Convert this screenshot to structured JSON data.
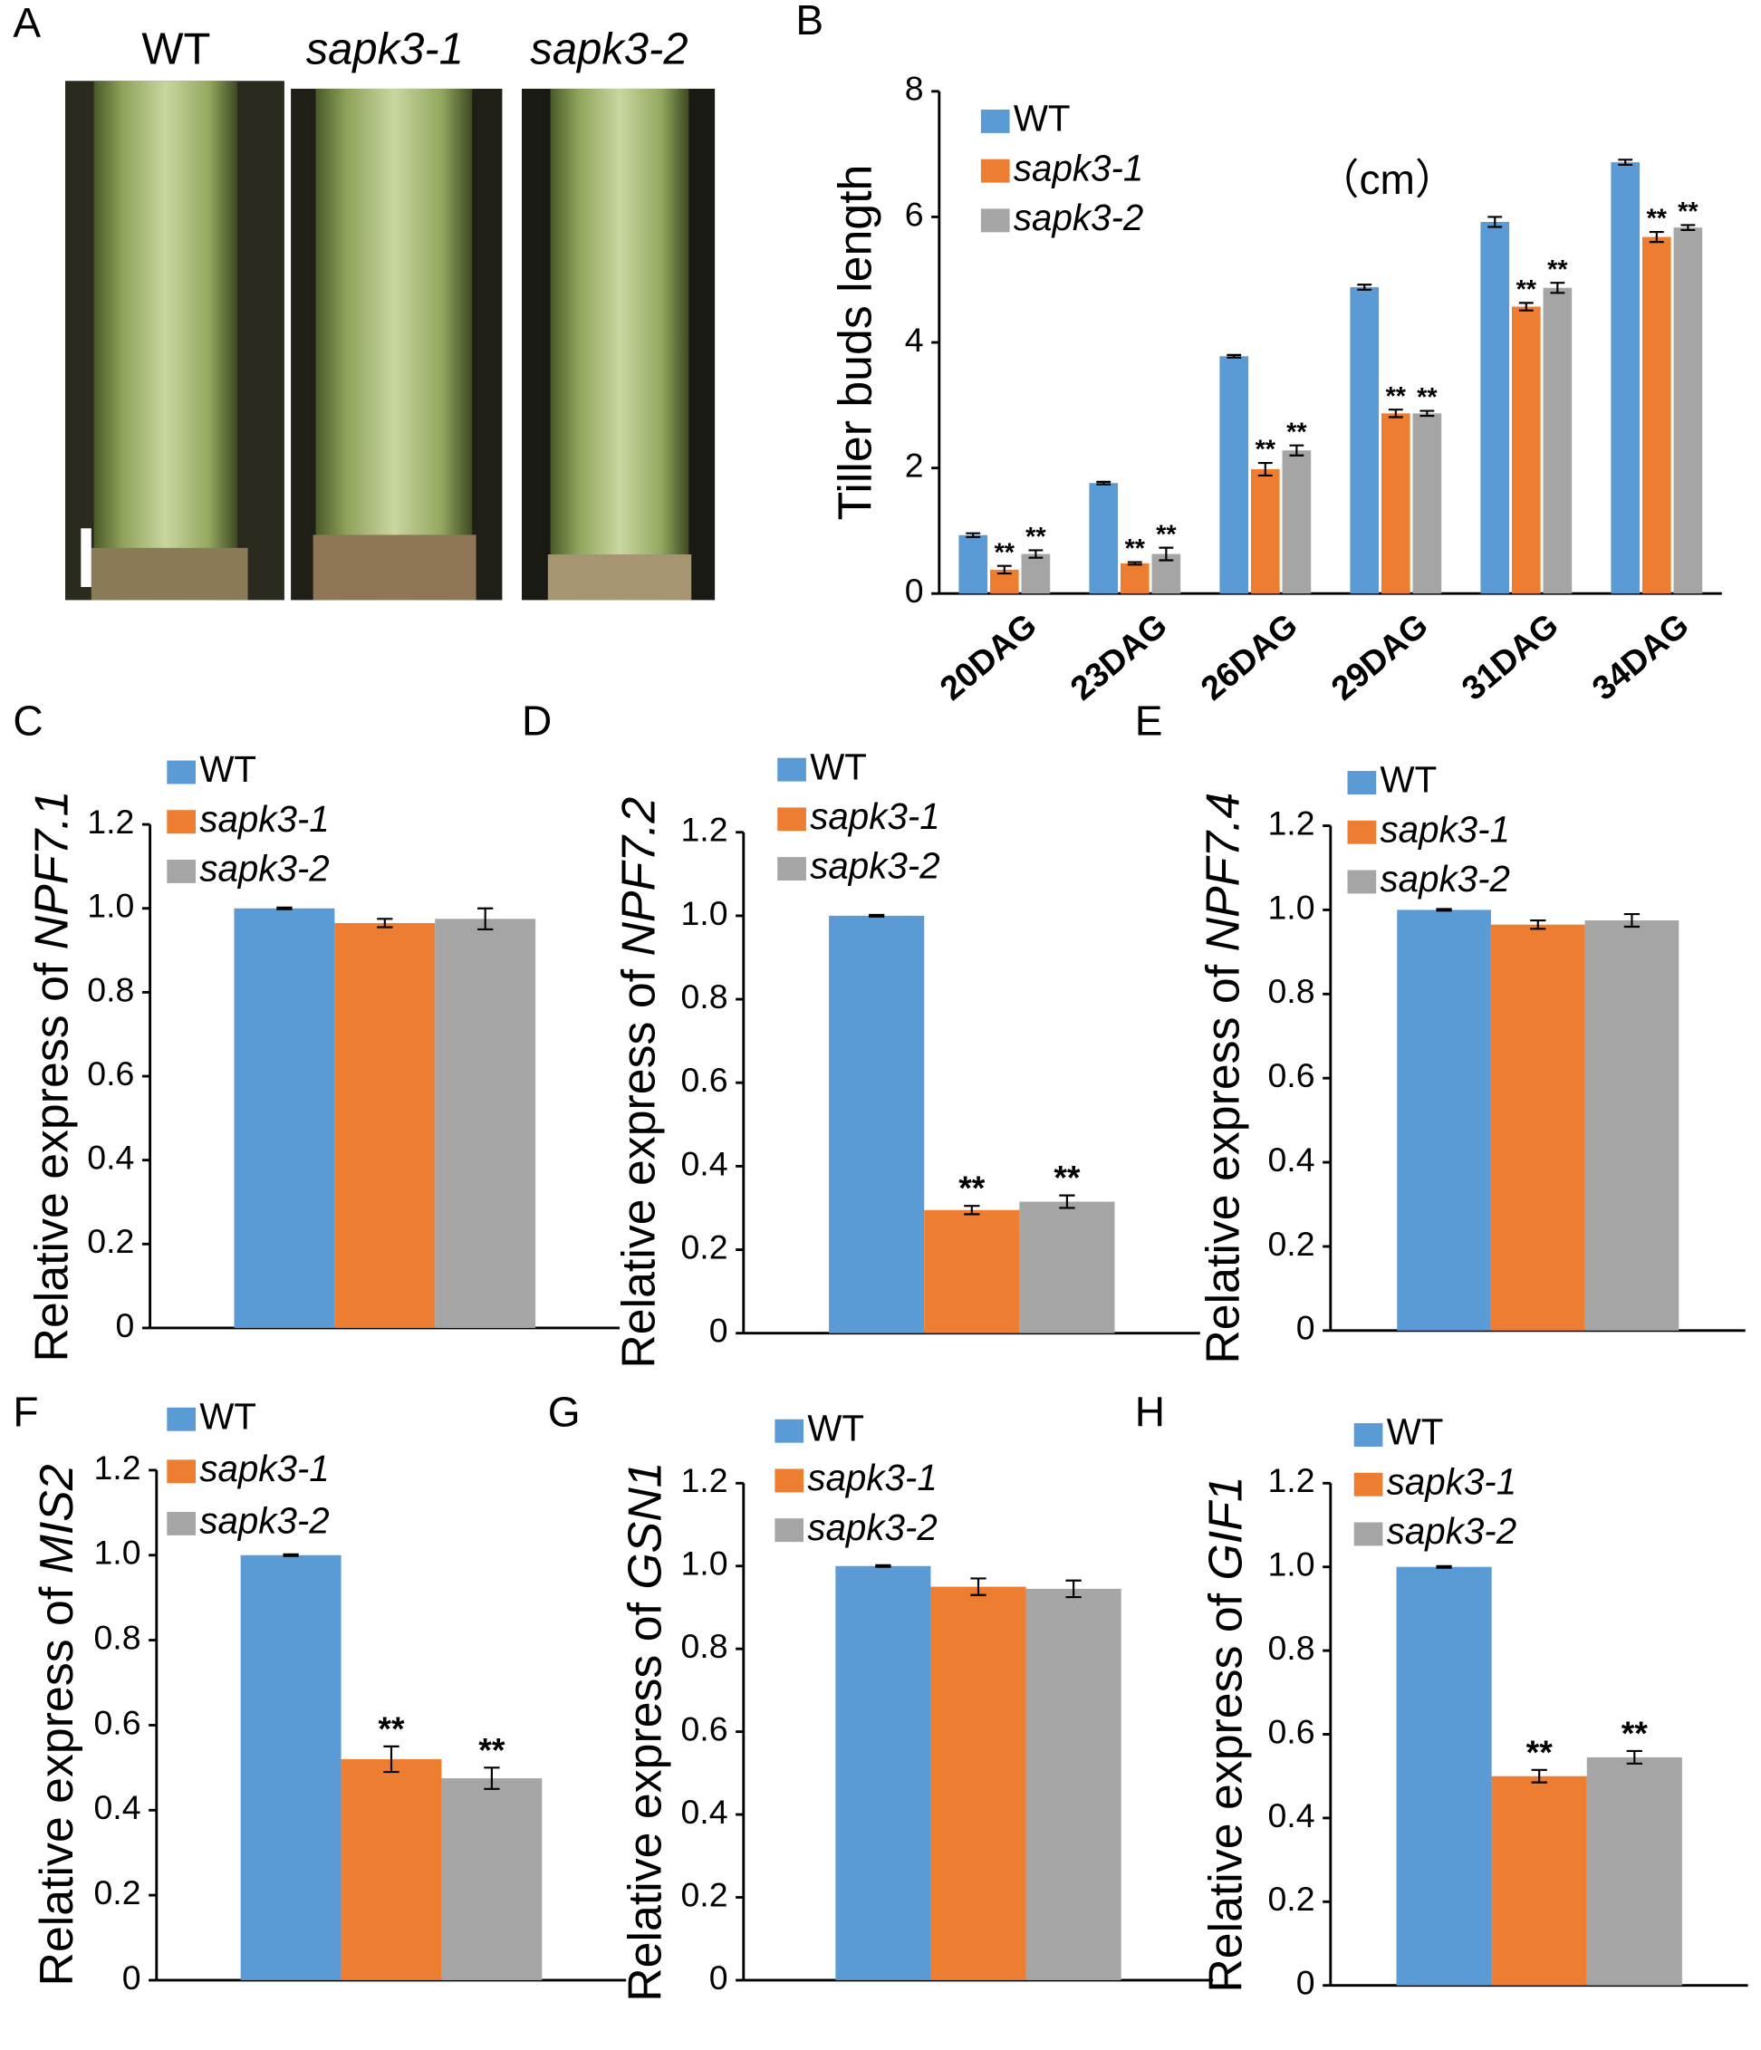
{
  "panel_a": {
    "panel": "A",
    "captions": [
      "WT",
      "sapk3-1",
      "sapk3-2"
    ]
  },
  "chart_data": [
    {
      "type": "bar",
      "panel": "B",
      "y_label": "Tiller buds length",
      "y_unit": "（cm）",
      "categories": [
        "20DAG",
        "23DAG",
        "26DAG",
        "29DAG",
        "31DAG",
        "34DAG"
      ],
      "ylim": [
        0,
        8
      ],
      "yticks": [
        0,
        2,
        4,
        6,
        8
      ],
      "series": [
        {
          "name": "WT",
          "color": "#5b9bd5",
          "values": [
            0.93,
            1.76,
            3.78,
            4.88,
            5.92,
            6.87
          ],
          "errors": [
            0.03,
            0.02,
            0.02,
            0.04,
            0.08,
            0.04
          ],
          "labels": [
            null,
            null,
            null,
            null,
            null,
            null
          ]
        },
        {
          "name": "sapk3-1",
          "color": "#ed7d31",
          "values": [
            0.38,
            0.48,
            1.98,
            2.87,
            4.57,
            5.68
          ],
          "errors": [
            0.06,
            0.02,
            0.1,
            0.06,
            0.06,
            0.08
          ],
          "labels": [
            "**",
            "**",
            "**",
            "**",
            "**",
            "**"
          ]
        },
        {
          "name": "sapk3-2",
          "color": "#a5a5a5",
          "values": [
            0.63,
            0.63,
            2.28,
            2.87,
            4.87,
            5.83
          ],
          "errors": [
            0.06,
            0.1,
            0.08,
            0.04,
            0.08,
            0.04
          ],
          "labels": [
            "**",
            "**",
            "**",
            "**",
            "**",
            "**"
          ]
        }
      ]
    },
    {
      "type": "bar",
      "panel": "C",
      "y_label": "Relative express of",
      "gene": "NPF7.1",
      "categories": [
        null
      ],
      "ylim": [
        0,
        1.2
      ],
      "yticks": [
        0,
        0.2,
        0.4,
        0.6,
        0.8,
        {
          "value": 1,
          "label": "1.0"
        },
        1.2
      ],
      "series": [
        {
          "name": "WT",
          "color": "#5b9bd5",
          "values": [
            1
          ],
          "errors": [
            0.002
          ],
          "labels": [
            null
          ]
        },
        {
          "name": "sapk3-1",
          "color": "#ed7d31",
          "values": [
            0.965
          ],
          "errors": [
            0.01
          ],
          "labels": [
            null
          ]
        },
        {
          "name": "sapk3-2",
          "color": "#a5a5a5",
          "values": [
            0.975
          ],
          "errors": [
            0.025
          ],
          "labels": [
            null
          ]
        }
      ]
    },
    {
      "type": "bar",
      "panel": "D",
      "y_label": "Relative express of",
      "gene": "NPF7.2",
      "categories": [
        null
      ],
      "ylim": [
        0,
        1.2
      ],
      "yticks": [
        0,
        0.2,
        0.4,
        0.6,
        0.8,
        {
          "value": 1,
          "label": "1.0"
        },
        1.2
      ],
      "series": [
        {
          "name": "WT",
          "color": "#5b9bd5",
          "values": [
            1
          ],
          "errors": [
            0.002
          ],
          "labels": [
            null
          ]
        },
        {
          "name": "sapk3-1",
          "color": "#ed7d31",
          "values": [
            0.295
          ],
          "errors": [
            0.01
          ],
          "labels": [
            "**"
          ]
        },
        {
          "name": "sapk3-2",
          "color": "#a5a5a5",
          "values": [
            0.315
          ],
          "errors": [
            0.015
          ],
          "labels": [
            "**"
          ]
        }
      ]
    },
    {
      "type": "bar",
      "panel": "E",
      "y_label": "Relative express of",
      "gene": "NPF7.4",
      "categories": [
        null
      ],
      "ylim": [
        0,
        1.2
      ],
      "yticks": [
        0,
        0.2,
        0.4,
        0.6,
        0.8,
        {
          "value": 1,
          "label": "1.0"
        },
        1.2
      ],
      "series": [
        {
          "name": "WT",
          "color": "#5b9bd5",
          "values": [
            1
          ],
          "errors": [
            0.002
          ],
          "labels": [
            null
          ]
        },
        {
          "name": "sapk3-1",
          "color": "#ed7d31",
          "values": [
            0.965
          ],
          "errors": [
            0.01
          ],
          "labels": [
            null
          ]
        },
        {
          "name": "sapk3-2",
          "color": "#a5a5a5",
          "values": [
            0.975
          ],
          "errors": [
            0.015
          ],
          "labels": [
            null
          ]
        }
      ]
    },
    {
      "type": "bar",
      "panel": "F",
      "y_label": "Relative express of",
      "gene": "MIS2",
      "categories": [
        null
      ],
      "ylim": [
        0,
        1.2
      ],
      "yticks": [
        0,
        0.2,
        0.4,
        0.6,
        0.8,
        {
          "value": 1,
          "label": "1.0"
        },
        1.2
      ],
      "series": [
        {
          "name": "WT",
          "color": "#5b9bd5",
          "values": [
            1
          ],
          "errors": [
            0.002
          ],
          "labels": [
            null
          ]
        },
        {
          "name": "sapk3-1",
          "color": "#ed7d31",
          "values": [
            0.52
          ],
          "errors": [
            0.03
          ],
          "labels": [
            "**"
          ]
        },
        {
          "name": "sapk3-2",
          "color": "#a5a5a5",
          "values": [
            0.475
          ],
          "errors": [
            0.025
          ],
          "labels": [
            "**"
          ]
        }
      ]
    },
    {
      "type": "bar",
      "panel": "G",
      "y_label": "Relative express of",
      "gene": "GSN1",
      "categories": [
        null
      ],
      "ylim": [
        0,
        1.2
      ],
      "yticks": [
        0,
        0.2,
        0.4,
        0.6,
        0.8,
        {
          "value": 1,
          "label": "1.0"
        },
        1.2
      ],
      "series": [
        {
          "name": "WT",
          "color": "#5b9bd5",
          "values": [
            1
          ],
          "errors": [
            0.002
          ],
          "labels": [
            null
          ]
        },
        {
          "name": "sapk3-1",
          "color": "#ed7d31",
          "values": [
            0.95
          ],
          "errors": [
            0.02
          ],
          "labels": [
            null
          ]
        },
        {
          "name": "sapk3-2",
          "color": "#a5a5a5",
          "values": [
            0.945
          ],
          "errors": [
            0.02
          ],
          "labels": [
            null
          ]
        }
      ]
    },
    {
      "type": "bar",
      "panel": "H",
      "y_label": "Relative express of",
      "gene": "GIF1",
      "categories": [
        null
      ],
      "ylim": [
        0,
        1.2
      ],
      "yticks": [
        0,
        0.2,
        0.4,
        0.6,
        0.8,
        {
          "value": 1,
          "label": "1.0"
        },
        1.2
      ],
      "series": [
        {
          "name": "WT",
          "color": "#5b9bd5",
          "values": [
            1
          ],
          "errors": [
            0.002
          ],
          "labels": [
            null
          ]
        },
        {
          "name": "sapk3-1",
          "color": "#ed7d31",
          "values": [
            0.5
          ],
          "errors": [
            0.015
          ],
          "labels": [
            "**"
          ]
        },
        {
          "name": "sapk3-2",
          "color": "#a5a5a5",
          "values": [
            0.545
          ],
          "errors": [
            0.015
          ],
          "labels": [
            "**"
          ]
        }
      ]
    }
  ]
}
